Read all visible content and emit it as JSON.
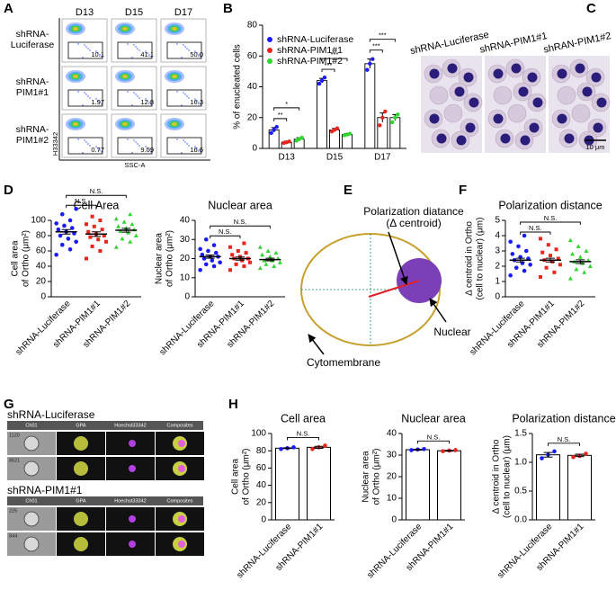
{
  "panels": [
    "A",
    "B",
    "C",
    "D",
    "E",
    "F",
    "G",
    "H"
  ],
  "panel_a": {
    "columns": [
      "D13",
      "D15",
      "D17"
    ],
    "rows": [
      {
        "name": [
          "shRNA-",
          "Luciferase"
        ],
        "values": [
          "10.1",
          "41.1",
          "50.0"
        ]
      },
      {
        "name": [
          "shRNA-",
          "PIM1#1"
        ],
        "values": [
          "1.97",
          "12.8",
          "16.3"
        ]
      },
      {
        "name": [
          "shRNA-",
          "PIM1#2"
        ],
        "values": [
          "0.77",
          "9.09",
          "16.6"
        ]
      }
    ],
    "y_axis": "H33342",
    "x_axis": "SSC-A"
  },
  "panel_c": {
    "images": [
      "shRNA-Luciferase",
      "shRNA-PIM1#1",
      "shRAN-PIM1#2"
    ],
    "scale_bar": "10 μm"
  },
  "panel_e": {
    "distance": [
      "Polarization diatance",
      "(Δ centroid)"
    ],
    "nuclear": "Nuclear",
    "membrane": "Cytomembrane"
  },
  "panel_g": {
    "groups": [
      {
        "name": "shRNA-Luciferase",
        "rows": [
          "1120",
          "8621"
        ]
      },
      {
        "name": "shRNA-PIM1#1",
        "rows": [
          "225",
          "844"
        ]
      }
    ],
    "channels": [
      "Ch01",
      "GPA",
      "Hoechst33342",
      "Composites"
    ]
  },
  "chart_data": [
    {
      "type": "grouped_bar",
      "ylabel": "% of enucleated cells",
      "categories": [
        "D13",
        "D15",
        "D17"
      ],
      "series": [
        {
          "name": "shRNA-Luciferase",
          "color": "#1a1aff",
          "values": [
            12,
            44,
            55
          ],
          "errors": [
            1.5,
            1.5,
            3
          ],
          "points": [
            [
              10,
              12,
              14
            ],
            [
              42,
              44,
              46
            ],
            [
              51,
              55,
              58
            ]
          ]
        },
        {
          "name": "shRNA-PIM1#1",
          "color": "#e8261e",
          "values": [
            4,
            12,
            20
          ],
          "errors": [
            0.7,
            1,
            3
          ],
          "points": [
            [
              3.5,
              4,
              4.5
            ],
            [
              11,
              12,
              13
            ],
            [
              15,
              20,
              24
            ]
          ]
        },
        {
          "name": "shRNA-PIM1#2",
          "color": "#2ed62e",
          "values": [
            6,
            9,
            20
          ],
          "errors": [
            1,
            0.6,
            2
          ],
          "points": [
            [
              5,
              6,
              7
            ],
            [
              8.5,
              9,
              9.5
            ],
            [
              17,
              20,
              22
            ]
          ]
        }
      ],
      "ylim": [
        0,
        80
      ],
      "yticks": [
        0,
        20,
        40,
        60,
        80
      ],
      "annotations": [
        "**",
        "*",
        "***",
        "***",
        "***",
        "***"
      ]
    },
    {
      "type": "dot",
      "title": "Cell Area",
      "ylabel": [
        "Cell area",
        "of Ortho (μm²)"
      ],
      "categories": [
        "shRNA-Luciferase",
        "shRNA-PIM1#1",
        "shRNA-PIM1#2"
      ],
      "colors": [
        "#1a1aff",
        "#e8261e",
        "#2ed62e"
      ],
      "values": [
        85,
        82,
        87
      ],
      "errors": [
        3,
        3,
        2.5
      ],
      "points": [
        [
          55,
          62,
          68,
          72,
          76,
          80,
          83,
          85,
          88,
          90,
          93,
          96,
          100,
          108,
          115
        ],
        [
          50,
          60,
          66,
          72,
          75,
          78,
          80,
          82,
          85,
          88,
          92,
          95,
          100,
          105
        ],
        [
          65,
          72,
          76,
          80,
          84,
          86,
          88,
          90,
          92,
          95,
          98,
          102,
          108
        ]
      ],
      "ylim": [
        0,
        100
      ],
      "yticks": [
        0,
        20,
        40,
        60,
        80,
        100
      ],
      "annotations": [
        "N.S.",
        "N.S."
      ]
    },
    {
      "type": "dot",
      "title": "Nuclear area",
      "ylabel": [
        "Nuclear area",
        "of Ortho (μm²)"
      ],
      "categories": [
        "shRNA-Luciferase",
        "shRNA-PIM1#1",
        "shRNA-PIM1#2"
      ],
      "colors": [
        "#1a1aff",
        "#e8261e",
        "#2ed62e"
      ],
      "values": [
        21,
        20,
        19.5
      ],
      "errors": [
        0.8,
        0.8,
        0.7
      ],
      "points": [
        [
          14,
          16,
          17,
          18,
          19,
          20,
          21,
          21,
          22,
          23,
          24,
          25,
          27,
          30
        ],
        [
          14,
          16,
          17,
          18,
          19,
          20,
          20,
          21,
          22,
          23,
          24,
          26,
          28
        ],
        [
          15,
          16,
          17,
          18,
          19,
          19,
          20,
          21,
          22,
          23,
          24,
          26
        ]
      ],
      "ylim": [
        0,
        40
      ],
      "yticks": [
        0,
        10,
        20,
        30,
        40
      ],
      "annotations": [
        "N.S.",
        "N.S."
      ]
    },
    {
      "type": "dot",
      "title": "Polarization distance",
      "ylabel": [
        "Δ centroid in Ortho",
        "(cell to nuclear) (μm)"
      ],
      "categories": [
        "shRNA-Luciferase",
        "shRNA-PIM1#1",
        "shRNA-PIM1#2"
      ],
      "colors": [
        "#1a1aff",
        "#e8261e",
        "#2ed62e"
      ],
      "values": [
        2.4,
        2.4,
        2.3
      ],
      "errors": [
        0.12,
        0.12,
        0.12
      ],
      "points": [
        [
          1.4,
          1.7,
          1.9,
          2.1,
          2.2,
          2.4,
          2.5,
          2.6,
          2.8,
          3.0,
          3.3,
          3.6,
          4.0
        ],
        [
          1.3,
          1.6,
          1.9,
          2.1,
          2.3,
          2.4,
          2.5,
          2.7,
          2.9,
          3.1,
          3.4,
          3.8
        ],
        [
          1.2,
          1.6,
          1.8,
          2.0,
          2.2,
          2.3,
          2.4,
          2.6,
          2.8,
          3.0,
          3.3,
          3.7
        ]
      ],
      "ylim": [
        0,
        5
      ],
      "yticks": [
        0,
        1,
        2,
        3,
        4,
        5
      ],
      "annotations": [
        "N.S.",
        "N.S."
      ]
    },
    {
      "type": "bar_dot",
      "title": "Cell area",
      "ylabel": [
        "Cell area",
        "of Ortho (μm²)"
      ],
      "categories": [
        "shRNA-Luciferase",
        "shRNA-PIM1#1"
      ],
      "colors": [
        "#1a1aff",
        "#e8261e"
      ],
      "values": [
        83,
        84
      ],
      "errors": [
        0.5,
        1.2
      ],
      "points": [
        [
          82,
          83,
          84
        ],
        [
          82,
          84,
          86
        ]
      ],
      "ylim": [
        0,
        100
      ],
      "yticks": [
        0,
        20,
        40,
        60,
        80,
        100
      ],
      "annotations": [
        "N.S."
      ]
    },
    {
      "type": "bar_dot",
      "title": "Nuclear area",
      "ylabel": [
        "Nuclear area",
        "of Ortho (μm²)"
      ],
      "categories": [
        "shRNA-Luciferase",
        "shRNA-PIM1#1"
      ],
      "colors": [
        "#1a1aff",
        "#e8261e"
      ],
      "values": [
        32.5,
        32
      ],
      "errors": [
        0.2,
        0.2
      ],
      "points": [
        [
          32.3,
          32.6,
          32.8
        ],
        [
          31.8,
          32.1,
          32.3
        ]
      ],
      "ylim": [
        0,
        40
      ],
      "yticks": [
        0,
        10,
        20,
        30,
        40
      ],
      "annotations": [
        "N.S."
      ]
    },
    {
      "type": "bar_dot",
      "title": "Polarization distance",
      "ylabel": [
        "Δ centroid in Ortho",
        "(cell to nuclear) (μm)"
      ],
      "categories": [
        "shRNA-Luciferase",
        "shRNA-PIM1#1"
      ],
      "colors": [
        "#1a1aff",
        "#e8261e"
      ],
      "values": [
        1.13,
        1.12
      ],
      "errors": [
        0.04,
        0.02
      ],
      "points": [
        [
          1.07,
          1.13,
          1.19
        ],
        [
          1.09,
          1.11,
          1.15
        ]
      ],
      "ylim": [
        0,
        1.5
      ],
      "yticks": [
        {
          "value": 0,
          "label": "0.0"
        },
        0.5,
        {
          "value": 1,
          "label": "1.0"
        },
        1.5
      ],
      "annotations": [
        "N.S."
      ]
    }
  ]
}
